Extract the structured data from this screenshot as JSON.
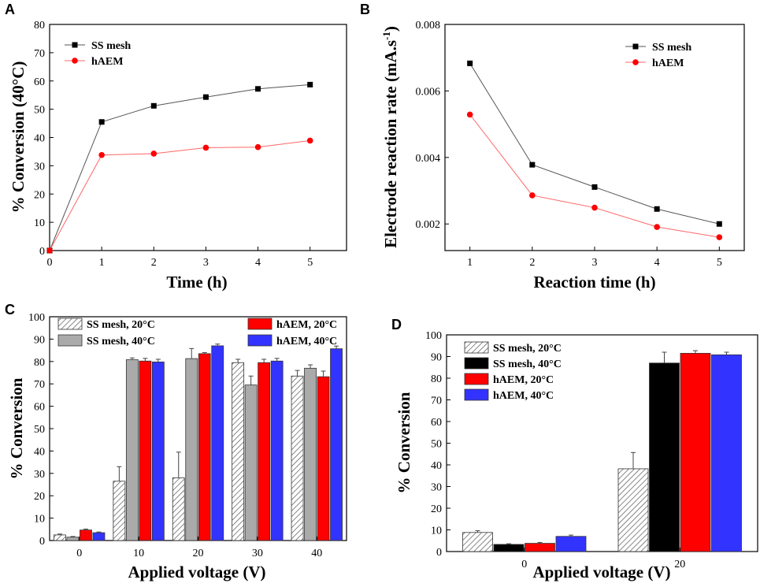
{
  "chart_data": [
    {
      "panel": "A",
      "type": "line",
      "x": [
        0,
        1,
        2,
        3,
        4,
        5
      ],
      "series": [
        {
          "name": "SS mesh",
          "values": [
            0,
            45.5,
            51.2,
            54.3,
            57.2,
            58.7
          ],
          "color": "#000000",
          "line_color": "#555555",
          "marker": "square"
        },
        {
          "name": "hAEM",
          "values": [
            0,
            33.8,
            34.3,
            36.4,
            36.6,
            38.9
          ],
          "color": "#ff0000",
          "line_color": "#ff6666",
          "marker": "circle"
        }
      ],
      "xlabel": "Time (h)",
      "ylabel": "% Conversion (40°C)",
      "xlim": [
        0,
        5.7
      ],
      "ylim": [
        0,
        80
      ],
      "xticks": [
        0,
        1,
        2,
        3,
        4,
        5
      ],
      "yticks": [
        0,
        10,
        20,
        30,
        40,
        50,
        60,
        70,
        80
      ],
      "legend_position": "top-left"
    },
    {
      "panel": "B",
      "type": "line",
      "x": [
        1,
        2,
        3,
        4,
        5
      ],
      "series": [
        {
          "name": "SS mesh",
          "values": [
            0.00683,
            0.00378,
            0.00311,
            0.00245,
            0.002
          ],
          "color": "#000000",
          "line_color": "#555555",
          "marker": "square"
        },
        {
          "name": "hAEM",
          "values": [
            0.00529,
            0.00286,
            0.00249,
            0.00191,
            0.0016
          ],
          "color": "#ff0000",
          "line_color": "#ff6666",
          "marker": "circle"
        }
      ],
      "xlabel": "Reaction time (h)",
      "ylabel_main": "Electrode reaction rate (mA.s",
      "ylabel_sup": "-1",
      "ylabel_end": ")",
      "xlim": [
        0.6,
        5.4
      ],
      "ylim": [
        0.0012,
        0.008
      ],
      "xticks": [
        1,
        2,
        3,
        4,
        5
      ],
      "yticks": [
        0.002,
        0.004,
        0.006,
        0.008
      ],
      "ytick_labels": [
        "0.002",
        "0.004",
        "0.006",
        "0.008"
      ],
      "legend_position": "top-right"
    },
    {
      "panel": "C",
      "type": "bar",
      "categories": [
        "0",
        "10",
        "20",
        "30",
        "40"
      ],
      "series": [
        {
          "name": "SS mesh, 20°C",
          "values": [
            2.5,
            26.5,
            28.0,
            79.5,
            73.5
          ],
          "errors": [
            0.4,
            6.5,
            11.5,
            1.5,
            2.5
          ],
          "fill": "hatch"
        },
        {
          "name": "SS mesh, 40°C",
          "values": [
            1.5,
            80.8,
            81.3,
            69.5,
            77.0
          ],
          "errors": [
            0.3,
            0.8,
            4.5,
            4.0,
            1.5
          ],
          "fill": "#aaaaaa"
        },
        {
          "name": "hAEM, 20°C",
          "values": [
            4.7,
            80.2,
            83.5,
            79.5,
            73.2
          ],
          "errors": [
            0.4,
            1.2,
            0.5,
            1.5,
            2.5
          ],
          "fill": "#ff0000"
        },
        {
          "name": "hAEM, 40°C",
          "values": [
            3.5,
            79.8,
            87.0,
            80.2,
            85.7
          ],
          "errors": [
            0.3,
            1.2,
            0.8,
            1.2,
            1.2
          ],
          "fill": "#3333ff"
        }
      ],
      "xlabel": "Applied voltage (V)",
      "ylabel": "% Conversion",
      "ylim": [
        0,
        100
      ],
      "yticks": [
        0,
        10,
        20,
        30,
        40,
        50,
        60,
        70,
        80,
        90,
        100
      ],
      "legend_position": "top (two columns)"
    },
    {
      "panel": "D",
      "type": "bar",
      "categories": [
        "0",
        "20"
      ],
      "series": [
        {
          "name": "SS mesh, 20°C",
          "values": [
            8.8,
            38.2
          ],
          "errors": [
            0.8,
            7.5
          ],
          "fill": "hatch"
        },
        {
          "name": "SS mesh, 40°C",
          "values": [
            3.3,
            87.0
          ],
          "errors": [
            0.3,
            5.0
          ],
          "fill": "#000000"
        },
        {
          "name": "hAEM, 20°C",
          "values": [
            3.8,
            91.5
          ],
          "errors": [
            0.4,
            1.2
          ],
          "fill": "#ff0000"
        },
        {
          "name": "hAEM, 40°C",
          "values": [
            7.0,
            90.8
          ],
          "errors": [
            0.6,
            1.2
          ],
          "fill": "#3333ff"
        }
      ],
      "xlabel": "Applied voltage (V)",
      "ylabel": "% Conversion",
      "ylim": [
        0,
        100
      ],
      "yticks": [
        0,
        10,
        20,
        30,
        40,
        50,
        60,
        70,
        80,
        90,
        100
      ],
      "legend_position": "top-left"
    }
  ]
}
